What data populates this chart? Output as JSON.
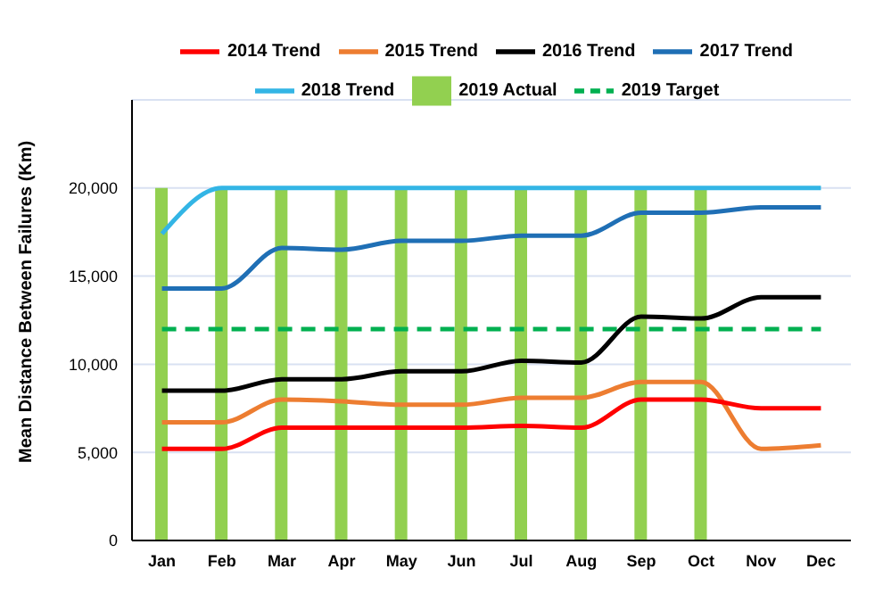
{
  "chart_data": {
    "type": "line",
    "ylabel": "Mean Distance Between Failures (Km)",
    "categories": [
      "Jan",
      "Feb",
      "Mar",
      "Apr",
      "May",
      "Jun",
      "Jul",
      "Aug",
      "Sep",
      "Oct",
      "Nov",
      "Dec"
    ],
    "ylim": [
      0,
      25000
    ],
    "yticks": [
      {
        "value": 0,
        "label": "0"
      },
      {
        "value": 5000,
        "label": "5,000"
      },
      {
        "value": 10000,
        "label": "10,000"
      },
      {
        "value": 15000,
        "label": "15,000"
      },
      {
        "value": 20000,
        "label": "20,000"
      }
    ],
    "grid": "y",
    "legend": "top",
    "marker": "none",
    "series": [
      {
        "name": "2019 Actual",
        "type": "bar",
        "color": "#92d050",
        "values": [
          20000,
          20000,
          20000,
          20000,
          20000,
          20000,
          20000,
          20000,
          20000,
          20000,
          null,
          null
        ]
      },
      {
        "name": "2019 Target",
        "color": "#00b050",
        "line_style": "dashed",
        "values": [
          12000,
          12000,
          12000,
          12000,
          12000,
          12000,
          12000,
          12000,
          12000,
          12000,
          12000,
          12000
        ]
      },
      {
        "name": "2018 Trend",
        "color": "#33b5e5",
        "values": [
          17400,
          20000,
          20000,
          20000,
          20000,
          20000,
          20000,
          20000,
          20000,
          20000,
          20000,
          20000
        ]
      },
      {
        "name": "2017 Trend",
        "color": "#1f6fb5",
        "values": [
          14300,
          14300,
          16600,
          16500,
          17000,
          17000,
          17300,
          17300,
          18600,
          18600,
          18900,
          18900
        ]
      },
      {
        "name": "2016 Trend",
        "color": "#000000",
        "values": [
          8500,
          8500,
          9150,
          9150,
          9600,
          9600,
          10200,
          10100,
          12700,
          12600,
          13800,
          13800
        ]
      },
      {
        "name": "2015 Trend",
        "color": "#ed7d31",
        "values": [
          6700,
          6700,
          8000,
          7900,
          7700,
          7700,
          8100,
          8100,
          9000,
          9000,
          5200,
          5400
        ]
      },
      {
        "name": "2014 Trend",
        "color": "#ff0000",
        "values": [
          5200,
          5200,
          6400,
          6400,
          6400,
          6400,
          6500,
          6400,
          8000,
          8000,
          7500,
          7500
        ]
      }
    ]
  }
}
